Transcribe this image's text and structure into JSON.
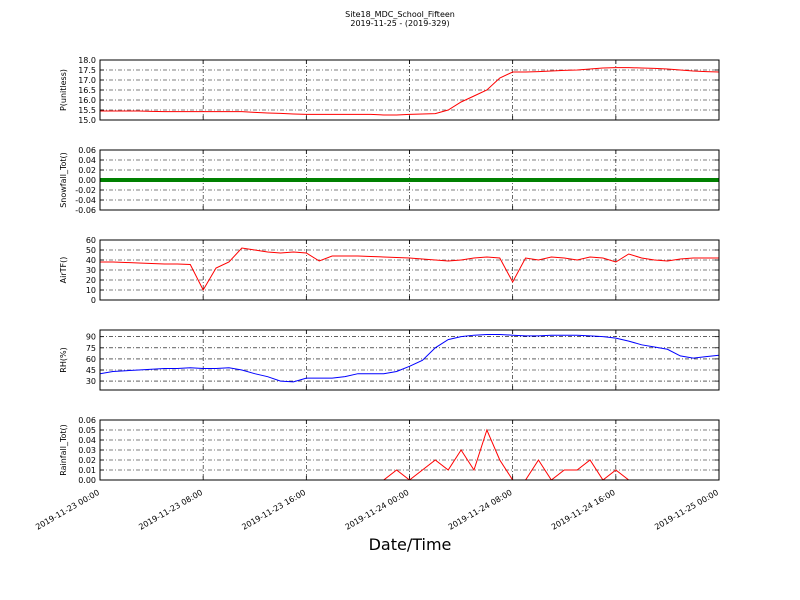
{
  "chart_data": [
    {
      "type": "line",
      "title": "Site18_MDC_School_Fifteen",
      "subtitle": "2019-11-25 - (2019-329)",
      "ylabel": "P(unitless)",
      "x": [
        "2019-11-23 00:00",
        "2019-11-23 01:00",
        "2019-11-23 02:00",
        "2019-11-23 03:00",
        "2019-11-23 04:00",
        "2019-11-23 05:00",
        "2019-11-23 06:00",
        "2019-11-23 07:00",
        "2019-11-23 08:00",
        "2019-11-23 09:00",
        "2019-11-23 10:00",
        "2019-11-23 11:00",
        "2019-11-23 12:00",
        "2019-11-23 13:00",
        "2019-11-23 14:00",
        "2019-11-23 15:00",
        "2019-11-23 16:00",
        "2019-11-23 17:00",
        "2019-11-23 18:00",
        "2019-11-23 19:00",
        "2019-11-23 20:00",
        "2019-11-23 21:00",
        "2019-11-23 22:00",
        "2019-11-23 23:00",
        "2019-11-24 00:00",
        "2019-11-24 01:00",
        "2019-11-24 02:00",
        "2019-11-24 03:00",
        "2019-11-24 04:00",
        "2019-11-24 05:00",
        "2019-11-24 06:00",
        "2019-11-24 07:00",
        "2019-11-24 08:00",
        "2019-11-24 09:00",
        "2019-11-24 10:00",
        "2019-11-24 11:00",
        "2019-11-24 12:00",
        "2019-11-24 13:00",
        "2019-11-24 14:00",
        "2019-11-24 15:00",
        "2019-11-24 16:00",
        "2019-11-24 17:00",
        "2019-11-24 18:00",
        "2019-11-24 19:00",
        "2019-11-24 20:00",
        "2019-11-24 21:00",
        "2019-11-24 22:00",
        "2019-11-24 23:00",
        "2019-11-25 00:00"
      ],
      "series": [
        {
          "color": "#ff0000",
          "values": [
            15.45,
            15.45,
            15.45,
            15.45,
            15.43,
            15.42,
            15.42,
            15.42,
            15.42,
            15.42,
            15.42,
            15.42,
            15.38,
            15.35,
            15.33,
            15.3,
            15.28,
            15.28,
            15.28,
            15.28,
            15.28,
            15.28,
            15.25,
            15.25,
            15.28,
            15.3,
            15.32,
            15.5,
            15.9,
            16.2,
            16.5,
            17.1,
            17.4,
            17.4,
            17.42,
            17.45,
            17.48,
            17.5,
            17.55,
            17.6,
            17.62,
            17.62,
            17.6,
            17.58,
            17.55,
            17.5,
            17.45,
            17.42,
            17.4
          ]
        }
      ],
      "ylim": [
        15,
        18
      ],
      "yticks": [
        {
          "value": 15,
          "label": "15.0"
        },
        15.5,
        {
          "value": 16,
          "label": "16.0"
        },
        16.5,
        {
          "value": 17,
          "label": "17.0"
        },
        17.5,
        {
          "value": 18,
          "label": "18.0"
        }
      ],
      "xlim": [
        "2019-11-23 00:00",
        "2019-11-25 00:00"
      ],
      "xticks": [
        "2019-11-23 00:00",
        "2019-11-23 08:00",
        "2019-11-23 16:00",
        "2019-11-24 00:00",
        "2019-11-24 08:00",
        "2019-11-24 16:00",
        "2019-11-25 00:00"
      ],
      "grid": true
    },
    {
      "type": "line",
      "ylabel": "Snowfall_Tot()",
      "x": [
        "2019-11-23 00:00",
        "2019-11-23 01:00",
        "2019-11-23 02:00",
        "2019-11-23 03:00",
        "2019-11-23 04:00",
        "2019-11-23 05:00",
        "2019-11-23 06:00",
        "2019-11-23 07:00",
        "2019-11-23 08:00",
        "2019-11-23 09:00",
        "2019-11-23 10:00",
        "2019-11-23 11:00",
        "2019-11-23 12:00",
        "2019-11-23 13:00",
        "2019-11-23 14:00",
        "2019-11-23 15:00",
        "2019-11-23 16:00",
        "2019-11-23 17:00",
        "2019-11-23 18:00",
        "2019-11-23 19:00",
        "2019-11-23 20:00",
        "2019-11-23 21:00",
        "2019-11-23 22:00",
        "2019-11-23 23:00",
        "2019-11-24 00:00",
        "2019-11-24 01:00",
        "2019-11-24 02:00",
        "2019-11-24 03:00",
        "2019-11-24 04:00",
        "2019-11-24 05:00",
        "2019-11-24 06:00",
        "2019-11-24 07:00",
        "2019-11-24 08:00",
        "2019-11-24 09:00",
        "2019-11-24 10:00",
        "2019-11-24 11:00",
        "2019-11-24 12:00",
        "2019-11-24 13:00",
        "2019-11-24 14:00",
        "2019-11-24 15:00",
        "2019-11-24 16:00",
        "2019-11-24 17:00",
        "2019-11-24 18:00",
        "2019-11-24 19:00",
        "2019-11-24 20:00",
        "2019-11-24 21:00",
        "2019-11-24 22:00",
        "2019-11-24 23:00",
        "2019-11-25 00:00"
      ],
      "series": [
        {
          "color": "#008000",
          "width": 4,
          "values": [
            0,
            0,
            0,
            0,
            0,
            0,
            0,
            0,
            0,
            0,
            0,
            0,
            0,
            0,
            0,
            0,
            0,
            0,
            0,
            0,
            0,
            0,
            0,
            0,
            0,
            0,
            0,
            0,
            0,
            0,
            0,
            0,
            0,
            0,
            0,
            0,
            0,
            0,
            0,
            0,
            0,
            0,
            0,
            0,
            0,
            0,
            0,
            0,
            0
          ]
        }
      ],
      "ylim": [
        -0.06,
        0.06
      ],
      "yticks": [
        -0.06,
        -0.04,
        -0.02,
        {
          "value": 0,
          "label": "0.00"
        },
        0.02,
        0.04,
        0.06
      ],
      "xlim": [
        "2019-11-23 00:00",
        "2019-11-25 00:00"
      ],
      "xticks": [
        "2019-11-23 00:00",
        "2019-11-23 08:00",
        "2019-11-23 16:00",
        "2019-11-24 00:00",
        "2019-11-24 08:00",
        "2019-11-24 16:00",
        "2019-11-25 00:00"
      ],
      "grid": true
    },
    {
      "type": "line",
      "ylabel": "AirTF()",
      "x": [
        "2019-11-23 00:00",
        "2019-11-23 01:00",
        "2019-11-23 02:00",
        "2019-11-23 03:00",
        "2019-11-23 04:00",
        "2019-11-23 05:00",
        "2019-11-23 06:00",
        "2019-11-23 07:00",
        "2019-11-23 08:00",
        "2019-11-23 09:00",
        "2019-11-23 10:00",
        "2019-11-23 11:00",
        "2019-11-23 12:00",
        "2019-11-23 13:00",
        "2019-11-23 14:00",
        "2019-11-23 15:00",
        "2019-11-23 16:00",
        "2019-11-23 17:00",
        "2019-11-23 18:00",
        "2019-11-23 19:00",
        "2019-11-23 20:00",
        "2019-11-23 21:00",
        "2019-11-23 22:00",
        "2019-11-23 23:00",
        "2019-11-24 00:00",
        "2019-11-24 01:00",
        "2019-11-24 02:00",
        "2019-11-24 03:00",
        "2019-11-24 04:00",
        "2019-11-24 05:00",
        "2019-11-24 06:00",
        "2019-11-24 07:00",
        "2019-11-24 08:00",
        "2019-11-24 09:00",
        "2019-11-24 10:00",
        "2019-11-24 11:00",
        "2019-11-24 12:00",
        "2019-11-24 13:00",
        "2019-11-24 14:00",
        "2019-11-24 15:00",
        "2019-11-24 16:00",
        "2019-11-24 17:00",
        "2019-11-24 18:00",
        "2019-11-24 19:00",
        "2019-11-24 20:00",
        "2019-11-24 21:00",
        "2019-11-24 22:00",
        "2019-11-24 23:00",
        "2019-11-25 00:00"
      ],
      "series": [
        {
          "color": "#ff0000",
          "values": [
            38,
            38,
            37.5,
            37,
            36.5,
            36,
            36,
            35.5,
            10,
            32,
            38,
            52,
            50,
            48,
            47,
            48,
            47,
            39,
            44,
            44,
            44,
            43.5,
            43,
            42.5,
            42,
            41,
            40,
            39,
            40,
            42,
            43,
            42,
            18,
            42,
            40,
            43,
            42,
            40,
            43,
            42,
            38,
            46,
            42,
            40,
            39,
            41,
            42,
            42,
            42
          ]
        }
      ],
      "ylim": [
        0,
        60
      ],
      "yticks": [
        0,
        10,
        20,
        30,
        40,
        50,
        60
      ],
      "xlim": [
        "2019-11-23 00:00",
        "2019-11-25 00:00"
      ],
      "xticks": [
        "2019-11-23 00:00",
        "2019-11-23 08:00",
        "2019-11-23 16:00",
        "2019-11-24 00:00",
        "2019-11-24 08:00",
        "2019-11-24 16:00",
        "2019-11-25 00:00"
      ],
      "grid": true
    },
    {
      "type": "line",
      "ylabel": "RH(%)",
      "x": [
        "2019-11-23 00:00",
        "2019-11-23 01:00",
        "2019-11-23 02:00",
        "2019-11-23 03:00",
        "2019-11-23 04:00",
        "2019-11-23 05:00",
        "2019-11-23 06:00",
        "2019-11-23 07:00",
        "2019-11-23 08:00",
        "2019-11-23 09:00",
        "2019-11-23 10:00",
        "2019-11-23 11:00",
        "2019-11-23 12:00",
        "2019-11-23 13:00",
        "2019-11-23 14:00",
        "2019-11-23 15:00",
        "2019-11-23 16:00",
        "2019-11-23 17:00",
        "2019-11-23 18:00",
        "2019-11-23 19:00",
        "2019-11-23 20:00",
        "2019-11-23 21:00",
        "2019-11-23 22:00",
        "2019-11-23 23:00",
        "2019-11-24 00:00",
        "2019-11-24 01:00",
        "2019-11-24 02:00",
        "2019-11-24 03:00",
        "2019-11-24 04:00",
        "2019-11-24 05:00",
        "2019-11-24 06:00",
        "2019-11-24 07:00",
        "2019-11-24 08:00",
        "2019-11-24 09:00",
        "2019-11-24 10:00",
        "2019-11-24 11:00",
        "2019-11-24 12:00",
        "2019-11-24 13:00",
        "2019-11-24 14:00",
        "2019-11-24 15:00",
        "2019-11-24 16:00",
        "2019-11-24 17:00",
        "2019-11-24 18:00",
        "2019-11-24 19:00",
        "2019-11-24 20:00",
        "2019-11-24 21:00",
        "2019-11-24 22:00",
        "2019-11-24 23:00",
        "2019-11-25 00:00"
      ],
      "series": [
        {
          "color": "#0000ff",
          "values": [
            40,
            43,
            44,
            45,
            46,
            47,
            47,
            48,
            47,
            47,
            48,
            45,
            40,
            36,
            30,
            29,
            34,
            34,
            34,
            36,
            40,
            40,
            40,
            43,
            50,
            58,
            75,
            86,
            90,
            92,
            93,
            93,
            92,
            91,
            91,
            92,
            92,
            92,
            91,
            90,
            88,
            84,
            79,
            76,
            73,
            64,
            61,
            63,
            65
          ]
        }
      ],
      "ylim": [
        18,
        99
      ],
      "yticks": [
        30,
        45,
        60,
        75,
        90
      ],
      "xlim": [
        "2019-11-23 00:00",
        "2019-11-25 00:00"
      ],
      "xticks": [
        "2019-11-23 00:00",
        "2019-11-23 08:00",
        "2019-11-23 16:00",
        "2019-11-24 00:00",
        "2019-11-24 08:00",
        "2019-11-24 16:00",
        "2019-11-25 00:00"
      ],
      "grid": true
    },
    {
      "type": "line",
      "ylabel": "Rainfall_Tot()",
      "xlabel": "Date/Time",
      "x": [
        "2019-11-23 00:00",
        "2019-11-23 01:00",
        "2019-11-23 02:00",
        "2019-11-23 03:00",
        "2019-11-23 04:00",
        "2019-11-23 05:00",
        "2019-11-23 06:00",
        "2019-11-23 07:00",
        "2019-11-23 08:00",
        "2019-11-23 09:00",
        "2019-11-23 10:00",
        "2019-11-23 11:00",
        "2019-11-23 12:00",
        "2019-11-23 13:00",
        "2019-11-23 14:00",
        "2019-11-23 15:00",
        "2019-11-23 16:00",
        "2019-11-23 17:00",
        "2019-11-23 18:00",
        "2019-11-23 19:00",
        "2019-11-23 20:00",
        "2019-11-23 21:00",
        "2019-11-23 22:00",
        "2019-11-23 23:00",
        "2019-11-24 00:00",
        "2019-11-24 01:00",
        "2019-11-24 02:00",
        "2019-11-24 03:00",
        "2019-11-24 04:00",
        "2019-11-24 05:00",
        "2019-11-24 06:00",
        "2019-11-24 07:00",
        "2019-11-24 08:00",
        "2019-11-24 09:00",
        "2019-11-24 10:00",
        "2019-11-24 11:00",
        "2019-11-24 12:00",
        "2019-11-24 13:00",
        "2019-11-24 14:00",
        "2019-11-24 15:00",
        "2019-11-24 16:00",
        "2019-11-24 17:00",
        "2019-11-24 18:00",
        "2019-11-24 19:00",
        "2019-11-24 20:00",
        "2019-11-24 21:00",
        "2019-11-24 22:00",
        "2019-11-24 23:00",
        "2019-11-25 00:00"
      ],
      "series": [
        {
          "color": "#ff0000",
          "values": [
            0,
            0,
            0,
            0,
            0,
            0,
            0,
            0,
            0,
            0,
            0,
            0,
            0,
            0,
            0,
            0,
            0,
            0,
            0,
            0,
            0,
            0,
            0,
            0.01,
            0,
            0.01,
            0.02,
            0.01,
            0.03,
            0.01,
            0.05,
            0.02,
            0,
            0,
            0.02,
            0,
            0.01,
            0.01,
            0.02,
            0,
            0.01,
            0,
            0,
            0,
            0,
            0,
            0,
            0,
            0
          ]
        }
      ],
      "ylim": [
        0,
        0.06
      ],
      "yticks": [
        {
          "value": 0,
          "label": "0.00"
        },
        0.01,
        0.02,
        0.03,
        0.04,
        0.05,
        0.06
      ],
      "xlim": [
        "2019-11-23 00:00",
        "2019-11-25 00:00"
      ],
      "xticks": [
        "2019-11-23 00:00",
        "2019-11-23 08:00",
        "2019-11-23 16:00",
        "2019-11-24 00:00",
        "2019-11-24 08:00",
        "2019-11-24 16:00",
        "2019-11-25 00:00"
      ],
      "grid": true,
      "show_xtick_labels": true
    }
  ]
}
